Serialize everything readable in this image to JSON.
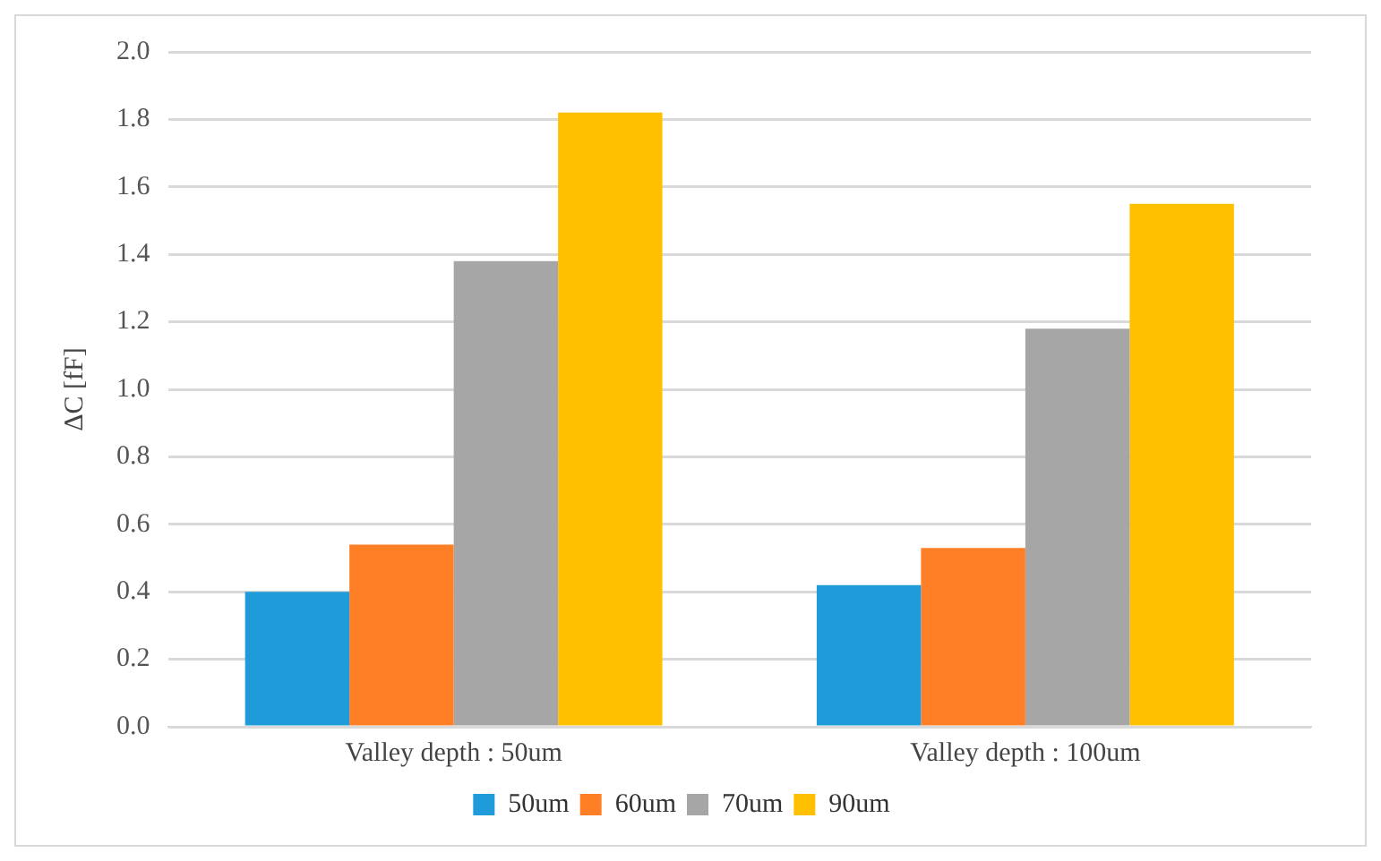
{
  "chart_data": {
    "type": "bar",
    "ylabel": "ΔC [fF]",
    "categories": [
      "Valley depth : 50um",
      "Valley depth : 100um"
    ],
    "series": [
      {
        "name": "50um",
        "color": "#1f9bd9",
        "values": [
          0.4,
          0.42
        ]
      },
      {
        "name": "60um",
        "color": "#ff7f27",
        "values": [
          0.54,
          0.53
        ]
      },
      {
        "name": "70um",
        "color": "#a6a6a6",
        "values": [
          1.38,
          1.18
        ]
      },
      {
        "name": "90um",
        "color": "#ffc000",
        "values": [
          1.82,
          1.55
        ]
      }
    ],
    "ylim": [
      0,
      2
    ],
    "yticks": [
      {
        "value": 0,
        "label": "0.0"
      },
      0.2,
      0.4,
      0.6,
      0.8,
      {
        "value": 1,
        "label": "1.0"
      },
      1.2,
      1.4,
      1.6,
      1.8,
      {
        "value": 2,
        "label": "2.0"
      }
    ],
    "grid": "y",
    "legend": "bottom"
  }
}
